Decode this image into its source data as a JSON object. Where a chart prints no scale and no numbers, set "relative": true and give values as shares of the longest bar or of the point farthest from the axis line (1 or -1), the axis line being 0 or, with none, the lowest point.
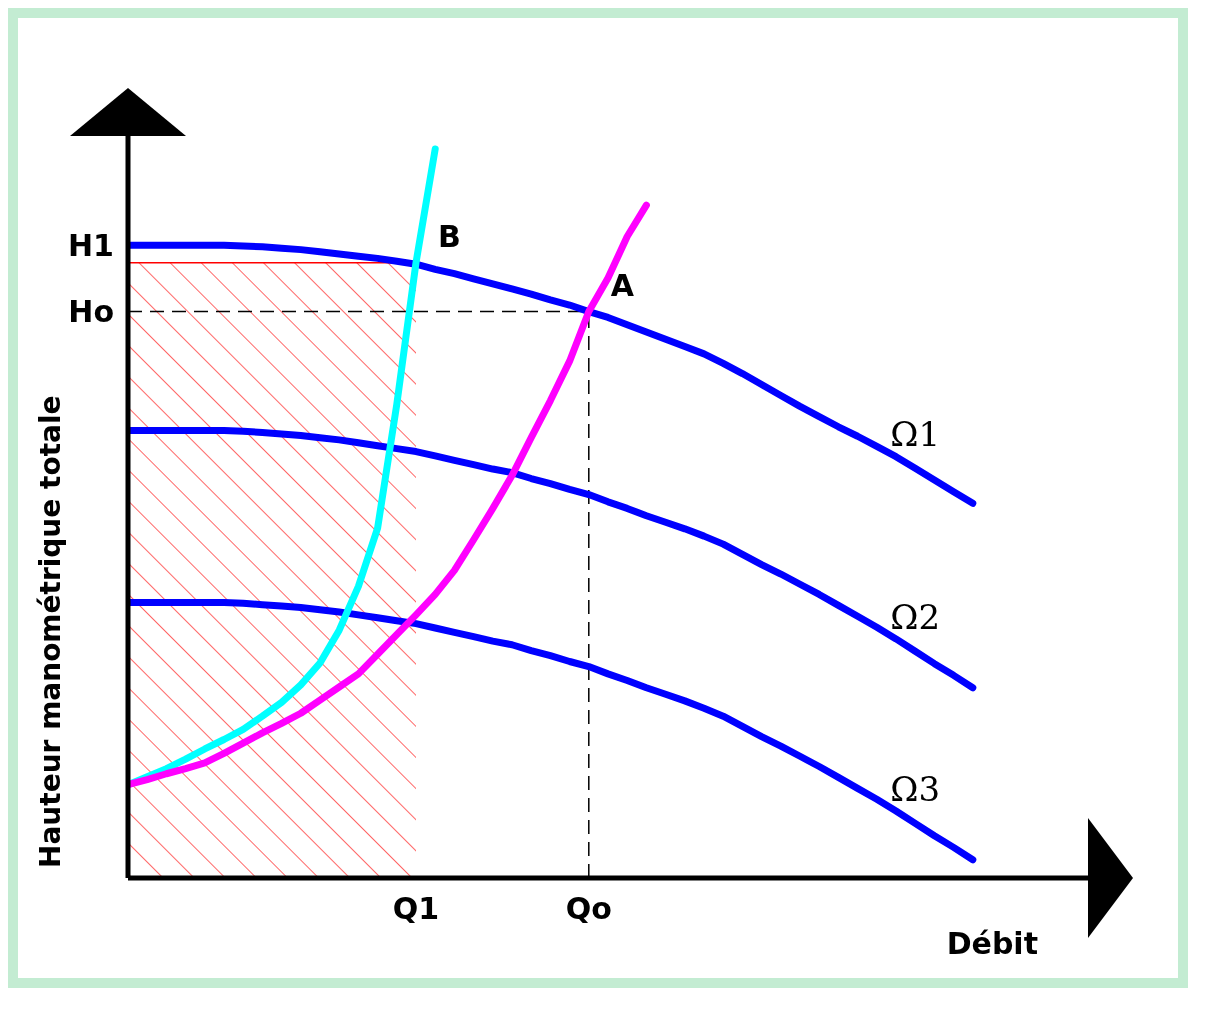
{
  "chart_data": {
    "type": "line",
    "relative": true,
    "xlabel": "Débit",
    "ylabel": "Hauteur manométrique totale",
    "marker": "none",
    "legend": false,
    "grid": false,
    "categories": [
      null,
      null,
      null,
      null,
      null,
      null,
      null,
      null,
      null,
      null,
      null,
      null,
      null,
      null,
      null,
      "Q1",
      null,
      null,
      null,
      null,
      null,
      null,
      null,
      null,
      "Qo",
      null,
      null,
      null,
      null,
      null,
      null,
      null,
      null,
      null,
      null,
      null,
      null,
      null,
      null,
      null,
      null,
      null,
      null,
      null,
      null
    ],
    "series": [
      {
        "name": "Ω1",
        "color": "#0000ff",
        "values": [
          0.868,
          0.868,
          0.868,
          0.868,
          0.868,
          0.868,
          0.867,
          0.866,
          0.864,
          0.862,
          0.859,
          0.856,
          0.853,
          0.85,
          0.846,
          0.842,
          0.835,
          0.829,
          0.822,
          0.815,
          0.808,
          0.801,
          0.793,
          0.786,
          0.777,
          0.769,
          0.759,
          0.749,
          0.739,
          0.729,
          0.719,
          0.706,
          0.692,
          0.677,
          0.662,
          0.647,
          0.633,
          0.619,
          0.606,
          0.592,
          0.578,
          0.562,
          0.546,
          0.53,
          0.514
        ]
      },
      {
        "name": "Ω2",
        "color": "#0000ff",
        "values": [
          0.614,
          0.614,
          0.614,
          0.614,
          0.614,
          0.614,
          0.613,
          0.611,
          0.609,
          0.607,
          0.604,
          0.601,
          0.597,
          0.593,
          0.589,
          0.585,
          0.579,
          0.573,
          0.567,
          0.561,
          0.556,
          0.548,
          0.541,
          0.533,
          0.526,
          0.516,
          0.507,
          0.497,
          0.488,
          0.479,
          0.469,
          0.458,
          0.444,
          0.43,
          0.417,
          0.403,
          0.389,
          0.374,
          0.359,
          0.344,
          0.328,
          0.311,
          0.294,
          0.278,
          0.261
        ]
      },
      {
        "name": "Ω3",
        "color": "#0000ff",
        "values": [
          0.378,
          0.378,
          0.378,
          0.378,
          0.378,
          0.378,
          0.377,
          0.375,
          0.373,
          0.371,
          0.368,
          0.365,
          0.361,
          0.357,
          0.353,
          0.349,
          0.343,
          0.337,
          0.331,
          0.325,
          0.32,
          0.312,
          0.305,
          0.297,
          0.29,
          0.28,
          0.271,
          0.261,
          0.252,
          0.243,
          0.233,
          0.222,
          0.208,
          0.194,
          0.181,
          0.167,
          0.153,
          0.138,
          0.123,
          0.108,
          0.092,
          0.075,
          0.058,
          0.042,
          0.025
        ]
      },
      {
        "color": "#00ffff",
        "values": [
          0.128,
          0.139,
          0.15,
          0.163,
          0.177,
          0.19,
          0.204,
          0.222,
          0.241,
          0.265,
          0.295,
          0.34,
          0.4,
          0.48,
          0.65,
          0.844,
          1,
          null,
          null,
          null,
          null,
          null,
          null,
          null,
          null,
          null,
          null,
          null,
          null,
          null,
          null,
          null,
          null,
          null,
          null,
          null,
          null,
          null,
          null,
          null,
          null,
          null,
          null,
          null,
          null
        ]
      },
      {
        "color": "#ff00ff",
        "values": [
          0.128,
          0.135,
          0.143,
          0.15,
          0.158,
          0.171,
          0.185,
          0.199,
          0.212,
          0.226,
          0.244,
          0.262,
          0.28,
          0.307,
          0.334,
          0.361,
          0.389,
          0.422,
          0.464,
          0.507,
          0.552,
          0.604,
          0.655,
          0.709,
          0.777,
          0.823,
          0.88,
          0.923,
          null,
          null,
          null,
          null,
          null,
          null,
          null,
          null,
          null,
          null,
          null,
          null,
          null,
          null,
          null,
          null,
          null
        ]
      },
      {
        "type": "area",
        "color": "#ff0000",
        "values": [
          0.844,
          0.844,
          0.844,
          0.844,
          0.844,
          0.844,
          0.844,
          0.844,
          0.844,
          0.844,
          0.844,
          0.844,
          0.844,
          0.844,
          0.844,
          0.844,
          null,
          null,
          null,
          null,
          null,
          null,
          null,
          null,
          null,
          null,
          null,
          null,
          null,
          null,
          null,
          null,
          null,
          null,
          null,
          null,
          null,
          null,
          null,
          null,
          null,
          null,
          null,
          null,
          null
        ]
      }
    ],
    "ref_lines": [
      {
        "axis": "y",
        "value": 0.777,
        "label": "Ho",
        "color": "#000000",
        "line_style": "dashed"
      },
      {
        "axis": "x",
        "value": "Qo",
        "color": "#000000",
        "line_style": "dashed"
      }
    ],
    "annotations": [
      "H1",
      {
        "text": "A",
        "x": "Qo",
        "y": 0.777
      },
      {
        "text": "B",
        "x": "Q1",
        "y": 0.844
      }
    ]
  }
}
